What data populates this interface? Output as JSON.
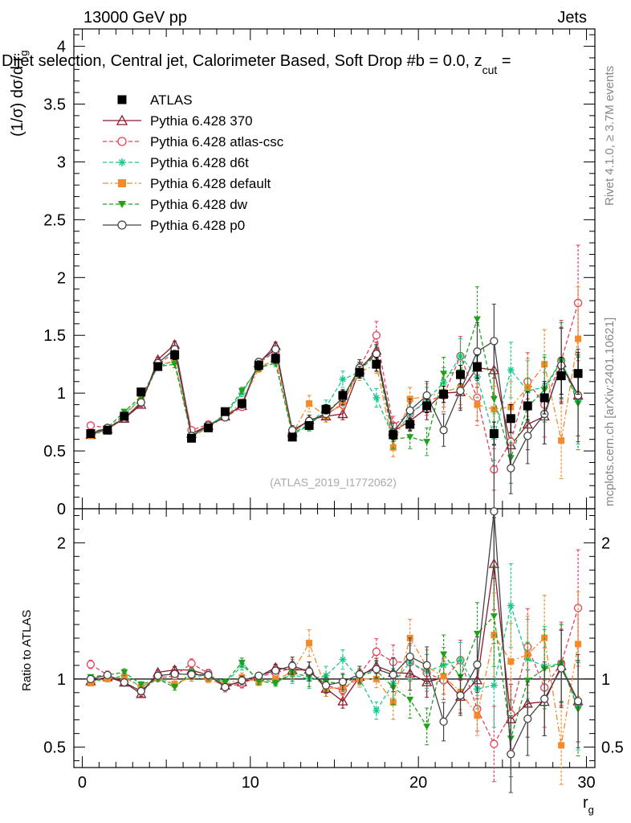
{
  "header": {
    "energy": "13000 GeV pp",
    "category": "Jets",
    "selection": "Dijet selection, Central jet, Calorimeter Based, Soft Drop #b = 0.0, z",
    "selection_sub": "cut",
    "selection_tail": " =",
    "rivet": "Rivet 4.1.0, ≥ 3.7M events",
    "mcplots": "mcplots.cern.ch [arXiv:2401.10621]",
    "analysis_id": "(ATLAS_2019_I1772062)"
  },
  "colors": {
    "atlas": "#000000",
    "p370": "#8b1a2c",
    "atlascsc": "#e8405a",
    "d6t": "#16c98d",
    "default": "#f58a2a",
    "dw": "#21a01c",
    "p0": "#444444"
  },
  "chart_data": [
    {
      "type": "line",
      "title": "Dijet selection, Central jet, Calorimeter Based, Soft Drop #b = 0.0, z_cut =",
      "xlabel": "r_g",
      "ylabel": "(1/σ) dσ/d r_g",
      "xlim": [
        -0.5,
        30.5
      ],
      "ylim": [
        0,
        4.15
      ],
      "yticks": [
        0,
        0.5,
        1,
        1.5,
        2,
        2.5,
        3,
        3.5,
        4
      ],
      "ytick_labels": [
        "0",
        "0.5",
        "1",
        "1.5",
        "2",
        "2.5",
        "3",
        "3.5",
        "4"
      ],
      "x": [
        0.5,
        1.5,
        2.5,
        3.5,
        4.5,
        5.5,
        6.5,
        7.5,
        8.5,
        9.5,
        10.5,
        11.5,
        12.5,
        13.5,
        14.5,
        15.5,
        16.5,
        17.5,
        18.5,
        19.5,
        20.5,
        21.5,
        22.5,
        23.5,
        24.5,
        25.5,
        26.5,
        27.5,
        28.5,
        29.5
      ],
      "series": [
        {
          "name": "ATLAS",
          "key": "atlas",
          "marker": "square",
          "style": "none",
          "values": [
            0.65,
            0.68,
            0.8,
            1.01,
            1.23,
            1.33,
            0.61,
            0.7,
            0.84,
            0.91,
            1.24,
            1.3,
            0.62,
            0.72,
            0.86,
            0.98,
            1.18,
            1.25,
            0.64,
            0.73,
            0.89,
            0.99,
            1.16,
            1.23,
            0.65,
            0.78,
            0.89,
            0.96,
            1.15,
            1.17
          ],
          "errors": [
            0.02,
            0.02,
            0.02,
            0.03,
            0.03,
            0.04,
            0.02,
            0.02,
            0.03,
            0.03,
            0.04,
            0.04,
            0.03,
            0.03,
            0.04,
            0.05,
            0.05,
            0.06,
            0.04,
            0.05,
            0.06,
            0.07,
            0.08,
            0.1,
            0.1,
            0.12,
            0.12,
            0.14,
            0.16,
            0.18
          ]
        },
        {
          "name": "Pythia 6.428 370",
          "key": "p370",
          "marker": "triangle-open",
          "style": "solid",
          "values": [
            0.64,
            0.69,
            0.78,
            0.9,
            1.29,
            1.42,
            0.65,
            0.72,
            0.8,
            0.89,
            1.26,
            1.41,
            0.66,
            0.77,
            0.8,
            0.82,
            1.2,
            1.37,
            0.67,
            0.76,
            0.87,
            1.0,
            1.01,
            1.22,
            1.2,
            0.55,
            0.73,
            0.8,
            1.26,
            0.98
          ],
          "errors": [
            0.01,
            0.01,
            0.02,
            0.02,
            0.02,
            0.03,
            0.02,
            0.02,
            0.02,
            0.03,
            0.03,
            0.03,
            0.04,
            0.04,
            0.05,
            0.05,
            0.06,
            0.07,
            0.07,
            0.09,
            0.1,
            0.12,
            0.14,
            0.17,
            0.22,
            0.2,
            0.22,
            0.24,
            0.3,
            0.35
          ]
        },
        {
          "name": "Pythia 6.428 atlas-csc",
          "key": "atlascsc",
          "marker": "circle-open",
          "style": "dashed",
          "values": [
            0.72,
            0.7,
            0.78,
            0.92,
            1.24,
            1.36,
            0.68,
            0.73,
            0.79,
            0.88,
            1.26,
            1.36,
            0.67,
            0.76,
            0.82,
            0.9,
            1.22,
            1.5,
            0.72,
            0.82,
            0.93,
            0.98,
            1.32,
            0.96,
            0.34,
            0.58,
            1.1,
            0.9,
            1.28,
            1.78
          ],
          "errors": [
            0.02,
            0.02,
            0.02,
            0.03,
            0.03,
            0.03,
            0.02,
            0.02,
            0.03,
            0.03,
            0.03,
            0.03,
            0.04,
            0.05,
            0.05,
            0.06,
            0.07,
            0.12,
            0.08,
            0.1,
            0.12,
            0.14,
            0.17,
            0.2,
            0.18,
            0.2,
            0.25,
            0.28,
            0.35,
            0.5
          ]
        },
        {
          "name": "Pythia 6.428 d6t",
          "key": "d6t",
          "marker": "star",
          "style": "dashed",
          "values": [
            0.64,
            0.68,
            0.82,
            0.95,
            1.23,
            1.28,
            0.62,
            0.72,
            0.81,
            1.0,
            1.24,
            1.27,
            0.64,
            0.72,
            0.88,
            1.12,
            1.18,
            0.96,
            0.62,
            0.82,
            0.94,
            1.09,
            1.32,
            1.14,
            0.62,
            1.2,
            1.02,
            1.05,
            1.28,
            0.94
          ],
          "errors": [
            0.01,
            0.01,
            0.02,
            0.02,
            0.02,
            0.03,
            0.02,
            0.02,
            0.02,
            0.03,
            0.03,
            0.03,
            0.04,
            0.05,
            0.06,
            0.07,
            0.07,
            0.08,
            0.07,
            0.09,
            0.11,
            0.13,
            0.15,
            0.18,
            0.2,
            0.24,
            0.26,
            0.28,
            0.33,
            0.38
          ]
        },
        {
          "name": "Pythia 6.428 default",
          "key": "default",
          "marker": "square",
          "style": "dashdot",
          "values": [
            0.63,
            0.68,
            0.81,
            0.95,
            1.24,
            1.28,
            0.62,
            0.7,
            0.8,
            0.92,
            1.21,
            1.3,
            0.65,
            0.91,
            0.8,
            0.92,
            1.18,
            1.25,
            0.53,
            0.95,
            0.97,
            1.01,
            1.05,
            0.9,
            0.86,
            0.88,
            1.05,
            1.25,
            0.59,
            1.47
          ],
          "errors": [
            0.01,
            0.01,
            0.02,
            0.02,
            0.02,
            0.03,
            0.02,
            0.02,
            0.02,
            0.03,
            0.03,
            0.03,
            0.04,
            0.07,
            0.05,
            0.06,
            0.07,
            0.08,
            0.08,
            0.1,
            0.11,
            0.13,
            0.15,
            0.18,
            0.2,
            0.22,
            0.25,
            0.3,
            0.33,
            0.45
          ]
        },
        {
          "name": "Pythia 6.428 dw",
          "key": "dw",
          "marker": "triangle-down",
          "style": "dashed",
          "values": [
            0.66,
            0.7,
            0.84,
            0.97,
            1.23,
            1.25,
            0.64,
            0.71,
            0.82,
            1.02,
            1.22,
            1.26,
            0.65,
            0.73,
            0.84,
            0.95,
            1.2,
            1.33,
            0.6,
            0.62,
            0.58,
            1.17,
            1.18,
            1.64,
            0.95,
            0.44,
            0.88,
            1.03,
            1.28,
            0.91
          ],
          "errors": [
            0.01,
            0.01,
            0.02,
            0.02,
            0.02,
            0.03,
            0.02,
            0.02,
            0.02,
            0.03,
            0.03,
            0.03,
            0.04,
            0.05,
            0.05,
            0.06,
            0.07,
            0.08,
            0.08,
            0.1,
            0.12,
            0.14,
            0.17,
            0.28,
            0.24,
            0.22,
            0.25,
            0.28,
            0.33,
            0.4
          ]
        },
        {
          "name": "Pythia 6.428 p0",
          "key": "p0",
          "marker": "circle-open",
          "style": "solid",
          "values": [
            0.65,
            0.7,
            0.78,
            0.92,
            1.26,
            1.38,
            0.63,
            0.72,
            0.79,
            0.9,
            1.27,
            1.38,
            0.68,
            0.76,
            0.82,
            0.96,
            1.22,
            1.34,
            0.66,
            0.85,
            0.98,
            0.68,
            1.02,
            1.36,
            1.45,
            0.35,
            0.63,
            0.82,
            1.24,
            0.98
          ],
          "errors": [
            0.01,
            0.01,
            0.02,
            0.02,
            0.02,
            0.03,
            0.02,
            0.02,
            0.02,
            0.03,
            0.03,
            0.03,
            0.04,
            0.05,
            0.05,
            0.06,
            0.07,
            0.08,
            0.08,
            0.1,
            0.12,
            0.14,
            0.17,
            0.25,
            0.32,
            0.22,
            0.24,
            0.26,
            0.33,
            0.4
          ]
        }
      ]
    },
    {
      "type": "line",
      "title": "",
      "xlabel": "r_g",
      "ylabel": "Ratio to ATLAS",
      "xlim": [
        -0.5,
        30.5
      ],
      "ylim": [
        0.35,
        2.25
      ],
      "yticks": [
        0.5,
        1,
        2
      ],
      "ytick_labels": [
        "0.5",
        "1",
        "2"
      ],
      "xticks": [
        0,
        10,
        20,
        30
      ],
      "xtick_labels": [
        "0",
        "10",
        "20",
        "30"
      ],
      "note": "Ratio values are each series divided by ATLAS"
    }
  ]
}
